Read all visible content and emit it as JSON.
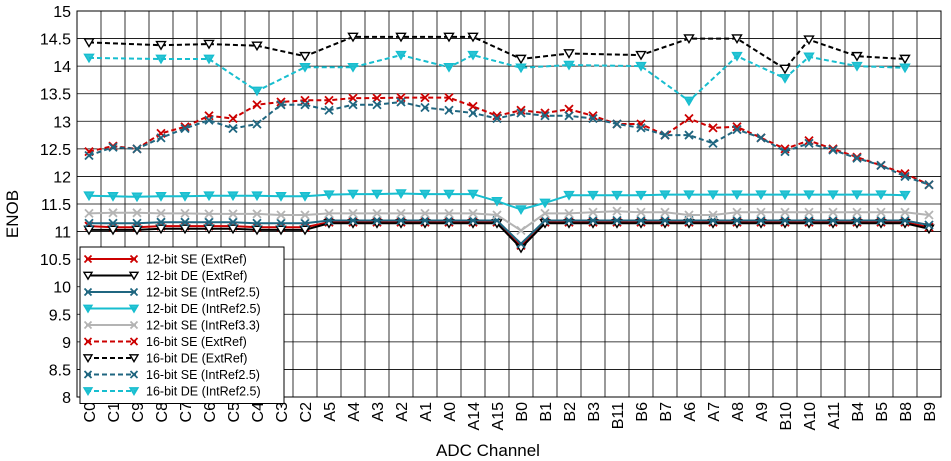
{
  "chart_data": {
    "type": "line",
    "title": "",
    "xlabel": "ADC Channel",
    "ylabel": "ENOB",
    "ylim": [
      8,
      15
    ],
    "ytick_step": 0.5,
    "grid": true,
    "legend_position": "bottom-left",
    "categories": [
      "C0",
      "C1",
      "C9",
      "C8",
      "C7",
      "C6",
      "C5",
      "C4",
      "C3",
      "C2",
      "A5",
      "A4",
      "A3",
      "A2",
      "A1",
      "A0",
      "A14",
      "A15",
      "B0",
      "B1",
      "B2",
      "B3",
      "B11",
      "B6",
      "B7",
      "A6",
      "A7",
      "A8",
      "A9",
      "B10",
      "A10",
      "A11",
      "B4",
      "B5",
      "B8",
      "B9"
    ],
    "series": [
      {
        "name": "12-bit SE (ExtRef)",
        "color": "#cc0000",
        "dash": "solid",
        "marker": "x",
        "values": [
          11.1,
          11.08,
          11.08,
          11.1,
          11.1,
          11.1,
          11.1,
          11.08,
          11.08,
          11.08,
          11.17,
          11.17,
          11.17,
          11.17,
          11.17,
          11.17,
          11.17,
          11.17,
          10.75,
          11.17,
          11.17,
          11.17,
          11.17,
          11.17,
          11.17,
          11.17,
          11.17,
          11.17,
          11.17,
          11.17,
          11.17,
          11.17,
          11.17,
          11.17,
          11.17,
          11.08
        ]
      },
      {
        "name": "12-bit DE (ExtRef)",
        "color": "#000000",
        "dash": "solid",
        "marker": "triangle",
        "values": [
          11.03,
          11.03,
          11.03,
          11.05,
          11.05,
          11.05,
          11.05,
          11.03,
          11.03,
          11.03,
          11.15,
          11.15,
          11.15,
          11.15,
          11.15,
          11.15,
          11.15,
          11.15,
          10.7,
          11.15,
          11.15,
          11.15,
          11.15,
          11.15,
          11.15,
          11.15,
          11.15,
          11.15,
          11.15,
          11.15,
          11.15,
          11.15,
          11.15,
          11.15,
          11.15,
          11.05
        ]
      },
      {
        "name": "12-bit SE (IntRef2.5)",
        "color": "#1f6680",
        "dash": "solid",
        "marker": "x",
        "values": [
          11.15,
          11.15,
          11.15,
          11.17,
          11.17,
          11.17,
          11.17,
          11.15,
          11.15,
          11.15,
          11.2,
          11.2,
          11.2,
          11.2,
          11.2,
          11.2,
          11.2,
          11.2,
          10.78,
          11.2,
          11.2,
          11.2,
          11.2,
          11.2,
          11.2,
          11.2,
          11.2,
          11.2,
          11.2,
          11.2,
          11.2,
          11.2,
          11.2,
          11.2,
          11.2,
          11.12
        ]
      },
      {
        "name": "12-bit DE (IntRef2.5)",
        "color": "#17becf",
        "dash": "solid",
        "marker": "triangle",
        "values": [
          11.65,
          11.64,
          11.63,
          11.64,
          11.64,
          11.65,
          11.65,
          11.65,
          11.64,
          11.64,
          11.67,
          11.68,
          11.68,
          11.69,
          11.68,
          11.68,
          11.68,
          11.55,
          11.4,
          11.52,
          11.66,
          11.66,
          11.66,
          11.66,
          11.67,
          11.67,
          11.67,
          11.67,
          11.67,
          11.67,
          11.67,
          11.67,
          11.67,
          11.67,
          11.66,
          null
        ]
      },
      {
        "name": "12-bit SE (IntRef3.3)",
        "color": "#b4b4b4",
        "dash": "solid",
        "marker": "x",
        "values": [
          11.33,
          11.34,
          11.34,
          11.33,
          11.33,
          11.32,
          11.32,
          11.32,
          11.3,
          11.3,
          11.33,
          11.33,
          11.33,
          11.33,
          11.33,
          11.33,
          11.33,
          11.3,
          11.02,
          11.33,
          11.33,
          11.35,
          11.37,
          11.35,
          11.35,
          11.3,
          11.3,
          11.35,
          11.35,
          11.35,
          11.35,
          11.35,
          11.35,
          11.35,
          11.35,
          11.3
        ]
      },
      {
        "name": "16-bit SE (ExtRef)",
        "color": "#cc0000",
        "dash": "dashed",
        "marker": "x",
        "values": [
          12.45,
          12.55,
          12.5,
          12.78,
          12.9,
          13.1,
          13.05,
          13.3,
          13.35,
          13.38,
          13.38,
          13.42,
          13.42,
          13.43,
          13.43,
          13.43,
          13.27,
          13.1,
          13.2,
          13.15,
          13.22,
          13.1,
          12.95,
          12.95,
          12.75,
          13.05,
          12.88,
          12.9,
          12.7,
          12.5,
          12.65,
          12.5,
          12.35,
          12.2,
          12.05,
          11.85
        ]
      },
      {
        "name": "16-bit DE (ExtRef)",
        "color": "#000000",
        "dash": "dashed",
        "marker": "triangle",
        "values": [
          14.43,
          null,
          null,
          14.38,
          null,
          14.4,
          null,
          14.37,
          null,
          14.18,
          null,
          14.53,
          null,
          14.53,
          null,
          14.53,
          14.53,
          null,
          14.13,
          null,
          14.23,
          null,
          null,
          14.2,
          null,
          14.5,
          null,
          14.5,
          null,
          13.95,
          14.48,
          null,
          14.18,
          null,
          14.13,
          null
        ]
      },
      {
        "name": "16-bit SE (IntRef2.5)",
        "color": "#1f6680",
        "dash": "dashed",
        "marker": "x",
        "values": [
          12.38,
          12.53,
          12.5,
          12.7,
          12.87,
          13.02,
          12.87,
          12.95,
          13.3,
          13.3,
          13.2,
          13.3,
          13.3,
          13.35,
          13.25,
          13.2,
          13.15,
          13.05,
          13.15,
          13.1,
          13.1,
          13.05,
          12.95,
          12.88,
          12.75,
          12.75,
          12.6,
          12.85,
          12.7,
          12.45,
          12.6,
          12.48,
          12.33,
          12.2,
          12.0,
          11.85
        ]
      },
      {
        "name": "16-bit DE (IntRef2.5)",
        "color": "#17becf",
        "dash": "dashed",
        "marker": "triangle",
        "values": [
          14.15,
          null,
          null,
          14.13,
          null,
          14.13,
          null,
          13.55,
          null,
          13.98,
          null,
          13.98,
          null,
          14.2,
          null,
          13.98,
          14.2,
          null,
          13.97,
          null,
          14.02,
          null,
          null,
          14.0,
          null,
          13.37,
          null,
          14.18,
          null,
          13.78,
          14.17,
          null,
          14.0,
          null,
          13.97,
          null
        ]
      }
    ]
  }
}
